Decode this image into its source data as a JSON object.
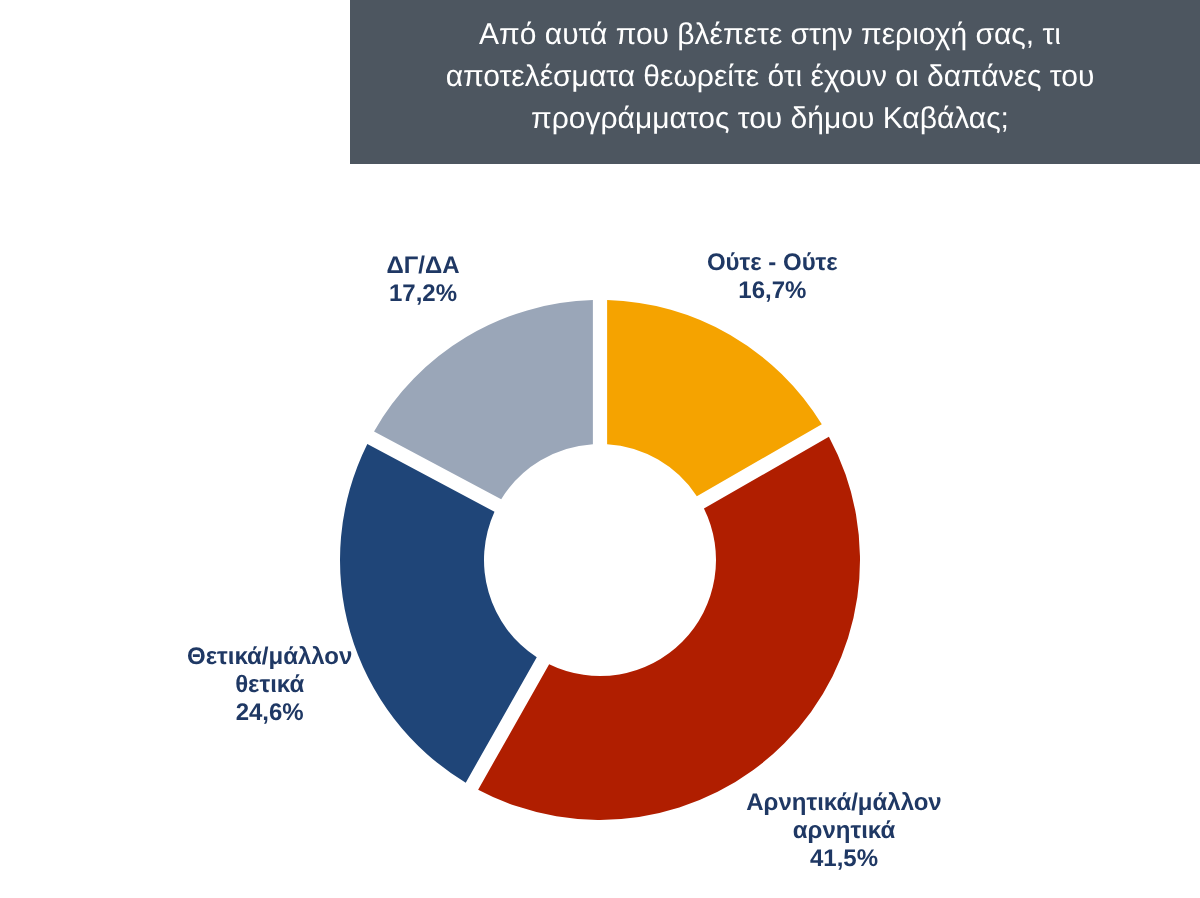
{
  "chart_data": {
    "type": "donut",
    "title": "Από αυτά που βλέπετε στην περιοχή σας, τι αποτελέσματα θεωρείτε ότι έχουν οι δαπάνες του προγράμματος του δήμου Καβάλας;",
    "categories": [
      "Ούτε - Ούτε",
      "Αρνητικά/μάλλον αρνητικά",
      "Θετικά/μάλλον θετικά",
      "ΔΓ/ΔΑ"
    ],
    "values": [
      16.7,
      41.5,
      24.6,
      17.2
    ],
    "colors": [
      "#f5a300",
      "#b01e00",
      "#1f4578",
      "#9aa6b8"
    ],
    "value_labels": [
      "16,7%",
      "41,5%",
      "24,6%",
      "17,2%"
    ]
  }
}
